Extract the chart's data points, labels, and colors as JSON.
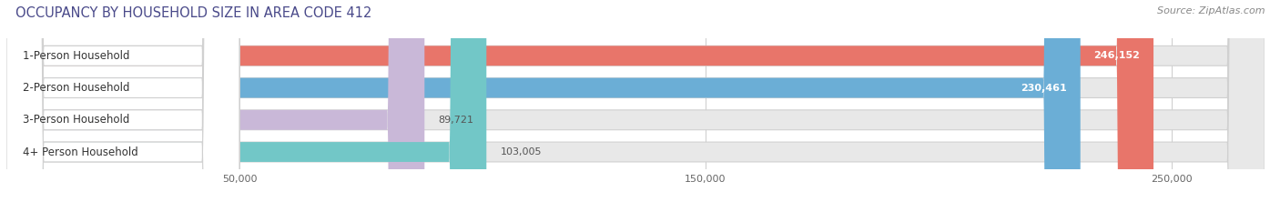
{
  "title": "OCCUPANCY BY HOUSEHOLD SIZE IN AREA CODE 412",
  "source": "Source: ZipAtlas.com",
  "categories": [
    "1-Person Household",
    "2-Person Household",
    "3-Person Household",
    "4+ Person Household"
  ],
  "values": [
    246152,
    230461,
    89721,
    103005
  ],
  "bar_colors": [
    "#E8756A",
    "#6BAED6",
    "#C9B8D8",
    "#72C7C7"
  ],
  "value_labels": [
    "246,152",
    "230,461",
    "89,721",
    "103,005"
  ],
  "xlim": [
    0,
    270000
  ],
  "xticks": [
    50000,
    150000,
    250000
  ],
  "xtick_labels": [
    "50,000",
    "150,000",
    "250,000"
  ],
  "background_color": "#ffffff",
  "bar_background_color": "#e8e8e8",
  "title_fontsize": 10.5,
  "label_fontsize": 8.5,
  "value_fontsize": 8.0,
  "source_fontsize": 8.0,
  "title_color": "#4a4a8a",
  "source_color": "#888888"
}
